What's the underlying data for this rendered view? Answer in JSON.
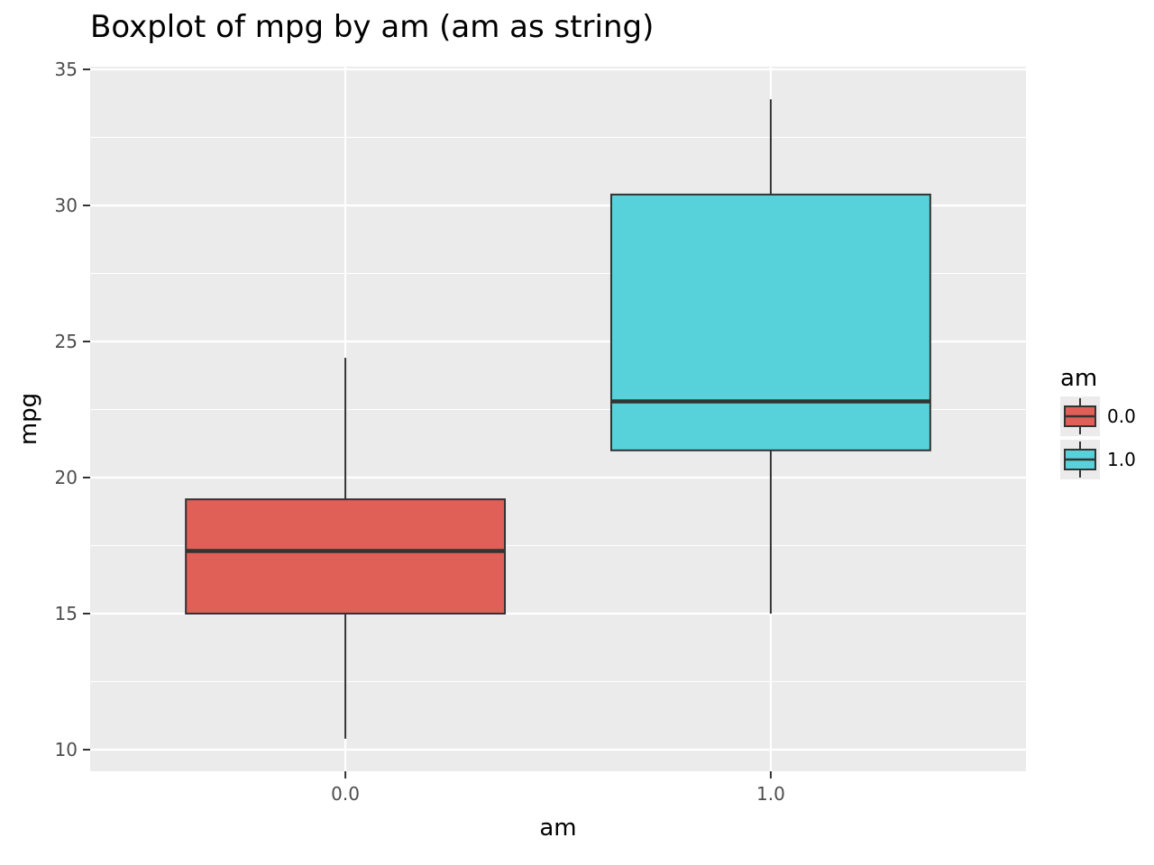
{
  "chart_data": {
    "type": "boxplot",
    "title": "Boxplot of mpg by am (am as string)",
    "xlabel": "am",
    "ylabel": "mpg",
    "ylim": [
      9.3,
      35.2
    ],
    "yticks": [
      10,
      15,
      20,
      25,
      30,
      35
    ],
    "ytick_labels": [
      "10",
      "15",
      "20",
      "25",
      "30",
      "35"
    ],
    "grid": true,
    "background": "#ebebeb",
    "categories": [
      "0.0",
      "1.0"
    ],
    "boxes": [
      {
        "category": "0.0",
        "whisker_low": 10.4,
        "q1": 15.0,
        "median": 17.3,
        "q3": 19.2,
        "whisker_high": 24.4,
        "color": "#e05f57"
      },
      {
        "category": "1.0",
        "whisker_low": 15.0,
        "q1": 21.0,
        "median": 22.8,
        "q3": 30.4,
        "whisker_high": 33.9,
        "color": "#57d2da"
      }
    ],
    "legend": {
      "title": "am",
      "position": "right",
      "entries": [
        {
          "label": "0.0",
          "color": "#e05f57"
        },
        {
          "label": "1.0",
          "color": "#57d2da"
        }
      ]
    }
  }
}
